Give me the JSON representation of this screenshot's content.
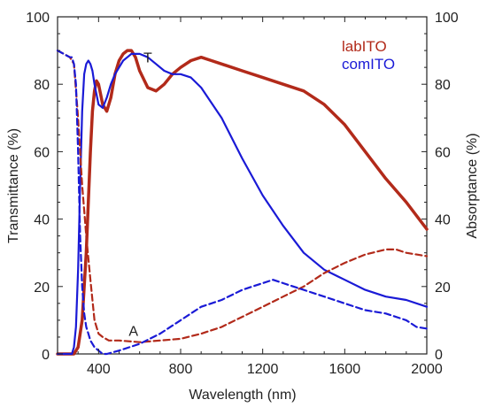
{
  "chart_data": {
    "type": "line",
    "xlabel": "Wavelength (nm)",
    "ylabel_left": "Transmittance (%)",
    "ylabel_right": "Absorptance (%)",
    "xlim": [
      200,
      2000
    ],
    "ylim": [
      0,
      100
    ],
    "x_ticks": [
      400,
      800,
      1200,
      1600,
      2000
    ],
    "y_ticks": [
      0,
      20,
      40,
      60,
      80,
      100
    ],
    "legend": {
      "placement": "top-right",
      "entries": [
        {
          "label": "labITO",
          "color": "#b22a1a"
        },
        {
          "label": "comITO",
          "color": "#1a1ad6"
        }
      ]
    },
    "annotations": [
      {
        "text": "T",
        "x": 640,
        "y": 88
      },
      {
        "text": "A",
        "x": 570,
        "y": 7
      }
    ],
    "series": [
      {
        "name": "labITO",
        "group": "T",
        "color": "#b22a1a",
        "style": "solid",
        "width": 3.5,
        "x": [
          200,
          250,
          280,
          300,
          320,
          340,
          360,
          370,
          380,
          390,
          400,
          420,
          440,
          460,
          480,
          500,
          520,
          540,
          560,
          580,
          600,
          640,
          680,
          720,
          760,
          800,
          850,
          900,
          950,
          1000,
          1100,
          1200,
          1300,
          1400,
          1500,
          1600,
          1700,
          1800,
          1900,
          2000
        ],
        "y": [
          0,
          0,
          0,
          2,
          10,
          30,
          60,
          72,
          78,
          81,
          80,
          74,
          72,
          76,
          83,
          87,
          89,
          90,
          90,
          88,
          84,
          79,
          78,
          80,
          83,
          85,
          87,
          88,
          87,
          86,
          84,
          82,
          80,
          78,
          74,
          68,
          60,
          52,
          45,
          37
        ]
      },
      {
        "name": "comITO",
        "group": "T",
        "color": "#1a1ad6",
        "style": "solid",
        "width": 2.2,
        "x": [
          200,
          250,
          270,
          280,
          290,
          300,
          310,
          320,
          330,
          340,
          350,
          360,
          370,
          380,
          400,
          420,
          440,
          460,
          480,
          500,
          520,
          540,
          560,
          580,
          600,
          640,
          680,
          720,
          760,
          800,
          850,
          900,
          1000,
          1100,
          1200,
          1300,
          1400,
          1500,
          1600,
          1700,
          1800,
          1900,
          2000
        ],
        "y": [
          0,
          0,
          0,
          2,
          8,
          25,
          50,
          72,
          83,
          86,
          87,
          86,
          84,
          80,
          74,
          73,
          76,
          80,
          83,
          85,
          87,
          88,
          89,
          89,
          89,
          88,
          86,
          84,
          83,
          83,
          82,
          79,
          70,
          58,
          47,
          38,
          30,
          25,
          22,
          19,
          17,
          16,
          14
        ]
      },
      {
        "name": "labITO",
        "group": "A",
        "color": "#b22a1a",
        "style": "dashed",
        "width": 2.2,
        "x": [
          200,
          230,
          260,
          280,
          300,
          320,
          340,
          360,
          380,
          400,
          420,
          450,
          500,
          600,
          700,
          800,
          900,
          1000,
          1100,
          1200,
          1300,
          1400,
          1500,
          1600,
          1700,
          1800,
          1850,
          1900,
          1950,
          2000
        ],
        "y": [
          90,
          89,
          88,
          86,
          70,
          50,
          35,
          22,
          10,
          6,
          5,
          4,
          4,
          3.5,
          4,
          4.5,
          6,
          8,
          11,
          14,
          17,
          20,
          24,
          27,
          29.5,
          31,
          31,
          30,
          29.5,
          29
        ]
      },
      {
        "name": "comITO",
        "group": "A",
        "color": "#1a1ad6",
        "style": "dashed",
        "width": 2.2,
        "x": [
          200,
          230,
          260,
          270,
          280,
          290,
          300,
          310,
          320,
          330,
          340,
          350,
          360,
          380,
          400,
          420,
          440,
          500,
          600,
          700,
          800,
          900,
          1000,
          1100,
          1200,
          1250,
          1300,
          1350,
          1400,
          1500,
          1600,
          1700,
          1800,
          1900,
          1950,
          2000
        ],
        "y": [
          90,
          89,
          88,
          88,
          86,
          80,
          60,
          35,
          20,
          12,
          8,
          6,
          4,
          2,
          1,
          0,
          0,
          1,
          3,
          6,
          10,
          14,
          16,
          19,
          21,
          22,
          21,
          20,
          19,
          17,
          15,
          13,
          12,
          10,
          8,
          7.5
        ]
      }
    ]
  }
}
